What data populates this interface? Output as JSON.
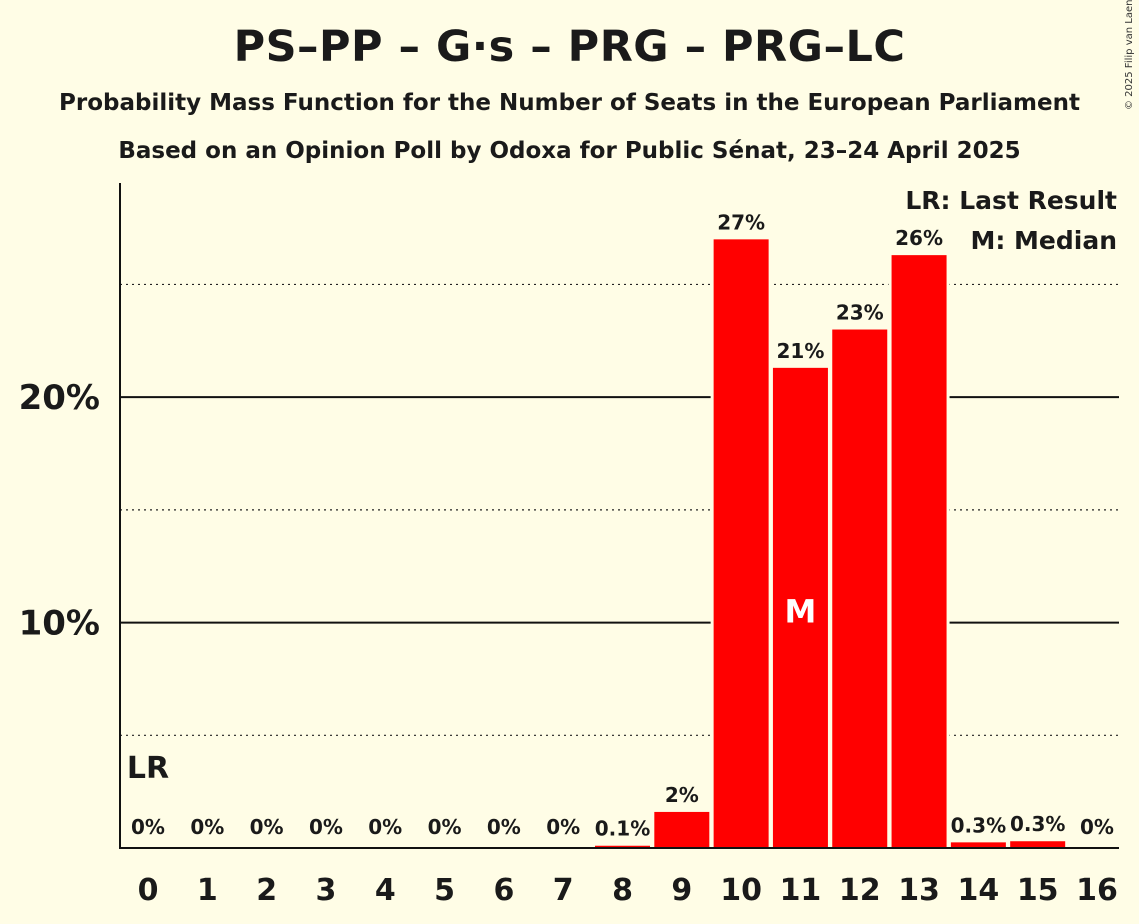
{
  "chart_data": {
    "type": "bar",
    "title": "PS–PP – G·s – PRG – PRG–LC",
    "subtitle": "Probability Mass Function for the Number of Seats in the European Parliament",
    "subtitle2": "Based on an Opinion Poll by Odoxa for Public Sénat, 23–24 April 2025",
    "copyright": "© 2025 Filip van Laenen",
    "categories": [
      "0",
      "1",
      "2",
      "3",
      "4",
      "5",
      "6",
      "7",
      "8",
      "9",
      "10",
      "11",
      "12",
      "13",
      "14",
      "15",
      "16"
    ],
    "values": [
      0,
      0,
      0,
      0,
      0,
      0,
      0,
      0,
      0.1,
      1.6,
      27.0,
      21.3,
      23.0,
      26.3,
      0.25,
      0.3,
      0
    ],
    "data_labels": [
      "0%",
      "0%",
      "0%",
      "0%",
      "0%",
      "0%",
      "0%",
      "0%",
      "0.1%",
      "2%",
      "27%",
      "21%",
      "23%",
      "26%",
      "0.3%",
      "0.3%",
      "0%"
    ],
    "yticks": [
      10,
      20
    ],
    "ytick_labels": [
      "10%",
      "20%"
    ],
    "ylim": [
      0,
      29.5
    ],
    "dotted_gridlines": [
      5,
      15,
      25
    ],
    "bar_color": "#ff0000",
    "last_result": {
      "index": 0,
      "label": "LR"
    },
    "median": {
      "index": 11,
      "label": "M"
    },
    "legend": [
      "LR: Last Result",
      "M: Median"
    ],
    "legend_position": "top-right",
    "xlabel": "",
    "ylabel": ""
  }
}
